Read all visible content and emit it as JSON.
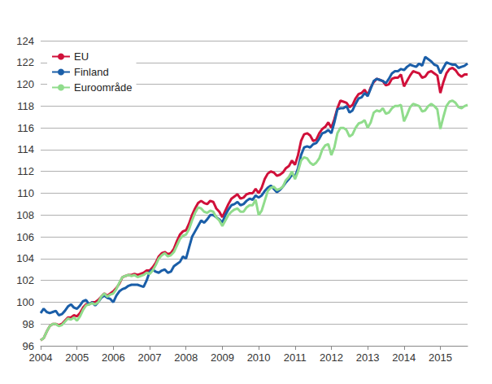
{
  "chart_data": {
    "type": "line",
    "categories": [
      "2004",
      null,
      null,
      null,
      null,
      null,
      null,
      null,
      null,
      null,
      null,
      null,
      "2005",
      null,
      null,
      null,
      null,
      null,
      null,
      null,
      null,
      null,
      null,
      null,
      "2006",
      null,
      null,
      null,
      null,
      null,
      null,
      null,
      null,
      null,
      null,
      null,
      "2007",
      null,
      null,
      null,
      null,
      null,
      null,
      null,
      null,
      null,
      null,
      null,
      "2008",
      null,
      null,
      null,
      null,
      null,
      null,
      null,
      null,
      null,
      null,
      null,
      "2009",
      null,
      null,
      null,
      null,
      null,
      null,
      null,
      null,
      null,
      null,
      null,
      "2010",
      null,
      null,
      null,
      null,
      null,
      null,
      null,
      null,
      null,
      null,
      null,
      "2011",
      null,
      null,
      null,
      null,
      null,
      null,
      null,
      null,
      null,
      null,
      null,
      "2012",
      null,
      null,
      null,
      null,
      null,
      null,
      null,
      null,
      null,
      null,
      null,
      "2013",
      null,
      null,
      null,
      null,
      null,
      null,
      null,
      null,
      null,
      null,
      null,
      "2014",
      null,
      null,
      null,
      null,
      null,
      null,
      null,
      null,
      null,
      null,
      null,
      "2015",
      null,
      null,
      null,
      null,
      null,
      null,
      null,
      null,
      null
    ],
    "series": [
      {
        "name": "EU",
        "color": "#d0103a",
        "values": [
          96.5,
          96.7,
          97.3,
          97.8,
          98.0,
          98.0,
          97.9,
          98.0,
          98.3,
          98.6,
          98.6,
          98.8,
          98.7,
          99.0,
          99.5,
          99.8,
          99.8,
          100.0,
          100.0,
          100.2,
          100.5,
          100.8,
          100.6,
          100.8,
          101.0,
          101.3,
          101.7,
          102.3,
          102.4,
          102.5,
          102.5,
          102.6,
          102.5,
          102.6,
          102.7,
          102.9,
          102.9,
          103.2,
          103.6,
          104.2,
          104.5,
          104.6,
          104.4,
          104.5,
          104.9,
          105.6,
          106.2,
          106.5,
          106.6,
          107.2,
          108.0,
          108.6,
          109.1,
          109.3,
          109.1,
          109.0,
          109.3,
          109.2,
          108.6,
          108.3,
          107.8,
          108.4,
          109.0,
          109.5,
          109.7,
          109.9,
          109.5,
          109.6,
          109.9,
          110.0,
          110.0,
          110.4,
          110.0,
          110.5,
          111.3,
          111.8,
          112.0,
          111.9,
          111.6,
          111.7,
          111.9,
          112.3,
          112.5,
          113.0,
          112.6,
          113.5,
          114.8,
          115.4,
          115.5,
          115.3,
          114.8,
          114.9,
          115.5,
          115.9,
          116.1,
          116.5,
          116.0,
          116.8,
          117.8,
          118.5,
          118.4,
          118.3,
          117.9,
          118.1,
          118.7,
          119.1,
          119.2,
          119.5,
          119.0,
          119.7,
          120.2,
          120.5,
          120.4,
          120.3,
          119.9,
          120.0,
          120.5,
          120.6,
          120.6,
          120.9,
          119.8,
          120.3,
          120.8,
          121.2,
          121.1,
          121.0,
          120.6,
          120.7,
          121.1,
          121.2,
          121.0,
          120.8,
          119.2,
          120.2,
          121.0,
          121.4,
          121.5,
          121.3,
          120.9,
          120.7,
          120.9,
          120.9
        ]
      },
      {
        "name": "Finland",
        "color": "#1a5ea8",
        "values": [
          99.0,
          99.4,
          99.1,
          99.0,
          99.1,
          99.2,
          98.8,
          98.9,
          99.2,
          99.6,
          99.8,
          99.5,
          99.4,
          99.7,
          100.1,
          100.2,
          99.8,
          100.0,
          99.7,
          100.0,
          100.4,
          100.6,
          100.4,
          100.3,
          100.0,
          100.6,
          101.0,
          101.2,
          101.3,
          101.5,
          101.6,
          101.6,
          101.6,
          101.5,
          101.4,
          102.0,
          102.8,
          103.0,
          102.8,
          102.7,
          102.9,
          103.0,
          102.7,
          102.8,
          103.3,
          103.5,
          103.7,
          104.2,
          104.0,
          105.0,
          106.0,
          106.5,
          107.0,
          107.5,
          107.3,
          107.6,
          108.0,
          108.0,
          107.8,
          107.6,
          107.3,
          108.0,
          108.5,
          108.9,
          109.0,
          109.2,
          108.9,
          109.0,
          109.3,
          109.5,
          109.4,
          109.8,
          109.6,
          109.8,
          110.2,
          110.5,
          110.7,
          110.4,
          110.1,
          110.3,
          110.6,
          111.0,
          111.3,
          111.7,
          111.5,
          112.3,
          113.5,
          114.2,
          114.3,
          114.2,
          114.5,
          114.6,
          115.0,
          115.5,
          115.6,
          115.8,
          115.5,
          116.5,
          117.7,
          117.8,
          117.8,
          118.0,
          117.4,
          117.6,
          118.2,
          118.7,
          118.8,
          119.2,
          118.9,
          119.6,
          120.3,
          120.5,
          120.4,
          120.3,
          120.1,
          120.5,
          121.0,
          121.2,
          121.2,
          121.4,
          121.3,
          121.6,
          121.8,
          121.7,
          121.6,
          121.9,
          121.7,
          122.5,
          122.3,
          122.1,
          121.8,
          121.7,
          121.0,
          121.5,
          122.0,
          121.9,
          121.8,
          121.8,
          121.5,
          121.6,
          121.7,
          121.9
        ]
      },
      {
        "name": "Euroområde",
        "color": "#90dc8c",
        "values": [
          96.5,
          96.7,
          97.3,
          97.8,
          98.0,
          98.0,
          97.8,
          97.9,
          98.2,
          98.5,
          98.4,
          98.6,
          98.3,
          98.7,
          99.3,
          99.7,
          99.8,
          99.9,
          99.8,
          100.0,
          100.5,
          100.8,
          100.5,
          100.7,
          100.8,
          101.2,
          101.8,
          102.3,
          102.4,
          102.5,
          102.4,
          102.5,
          102.3,
          102.4,
          102.5,
          102.7,
          102.6,
          102.9,
          103.4,
          104.0,
          104.3,
          104.5,
          104.2,
          104.3,
          104.6,
          105.2,
          105.8,
          106.1,
          106.2,
          106.7,
          107.5,
          108.2,
          108.7,
          108.6,
          108.3,
          108.2,
          108.4,
          108.3,
          107.8,
          107.5,
          107.0,
          107.5,
          108.0,
          108.3,
          108.5,
          108.6,
          108.3,
          108.3,
          108.7,
          108.9,
          108.9,
          109.4,
          108.0,
          108.4,
          109.3,
          110.2,
          110.5,
          110.6,
          110.3,
          110.4,
          110.6,
          111.2,
          111.5,
          112.0,
          111.3,
          112.0,
          113.0,
          113.3,
          113.2,
          112.8,
          112.6,
          112.8,
          113.2,
          114.0,
          114.4,
          114.5,
          113.5,
          114.2,
          115.5,
          116.0,
          116.0,
          115.8,
          115.2,
          115.4,
          116.0,
          116.4,
          116.5,
          116.7,
          116.0,
          116.5,
          117.4,
          117.6,
          117.5,
          117.8,
          117.3,
          117.4,
          117.8,
          118.0,
          118.0,
          118.1,
          116.6,
          117.2,
          117.9,
          118.2,
          118.1,
          118.0,
          117.5,
          117.6,
          118.0,
          118.2,
          118.0,
          117.7,
          115.9,
          117.0,
          118.0,
          118.4,
          118.5,
          118.3,
          117.9,
          117.8,
          118.0,
          118.1
        ]
      }
    ],
    "ylim": [
      96,
      124
    ],
    "yticks": [
      96,
      98,
      100,
      102,
      104,
      106,
      108,
      110,
      112,
      114,
      116,
      118,
      120,
      122,
      124
    ],
    "grid": true,
    "legend": "upper left"
  }
}
